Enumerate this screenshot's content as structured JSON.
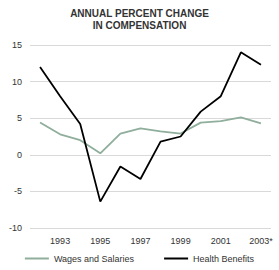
{
  "chart_data": {
    "type": "line",
    "title": "ANNUAL PERCENT CHANGE\nIN COMPENSATION",
    "categories": [
      null,
      "1993",
      null,
      "1995",
      null,
      "1997",
      null,
      "1999",
      null,
      "2001",
      null,
      "2003*"
    ],
    "series": [
      {
        "name": "Wages and Salaries",
        "color": "#8fae9c",
        "marker": "none",
        "line_style": "solid",
        "values": [
          4.4,
          2.8,
          2.0,
          0.2,
          2.9,
          3.6,
          3.2,
          2.9,
          4.4,
          4.6,
          5.1,
          4.3
        ]
      },
      {
        "name": "Health Benefits",
        "color": "#000000",
        "marker": "none",
        "line_style": "solid",
        "values": [
          12.0,
          8.0,
          4.2,
          -6.4,
          -1.6,
          -3.3,
          1.8,
          2.5,
          5.9,
          8.0,
          14.0,
          12.3
        ]
      }
    ],
    "ylim": [
      -10,
      15
    ],
    "yticks": [
      -10,
      -5,
      0,
      5,
      10,
      15
    ],
    "grid": true,
    "legend": "bottom"
  }
}
